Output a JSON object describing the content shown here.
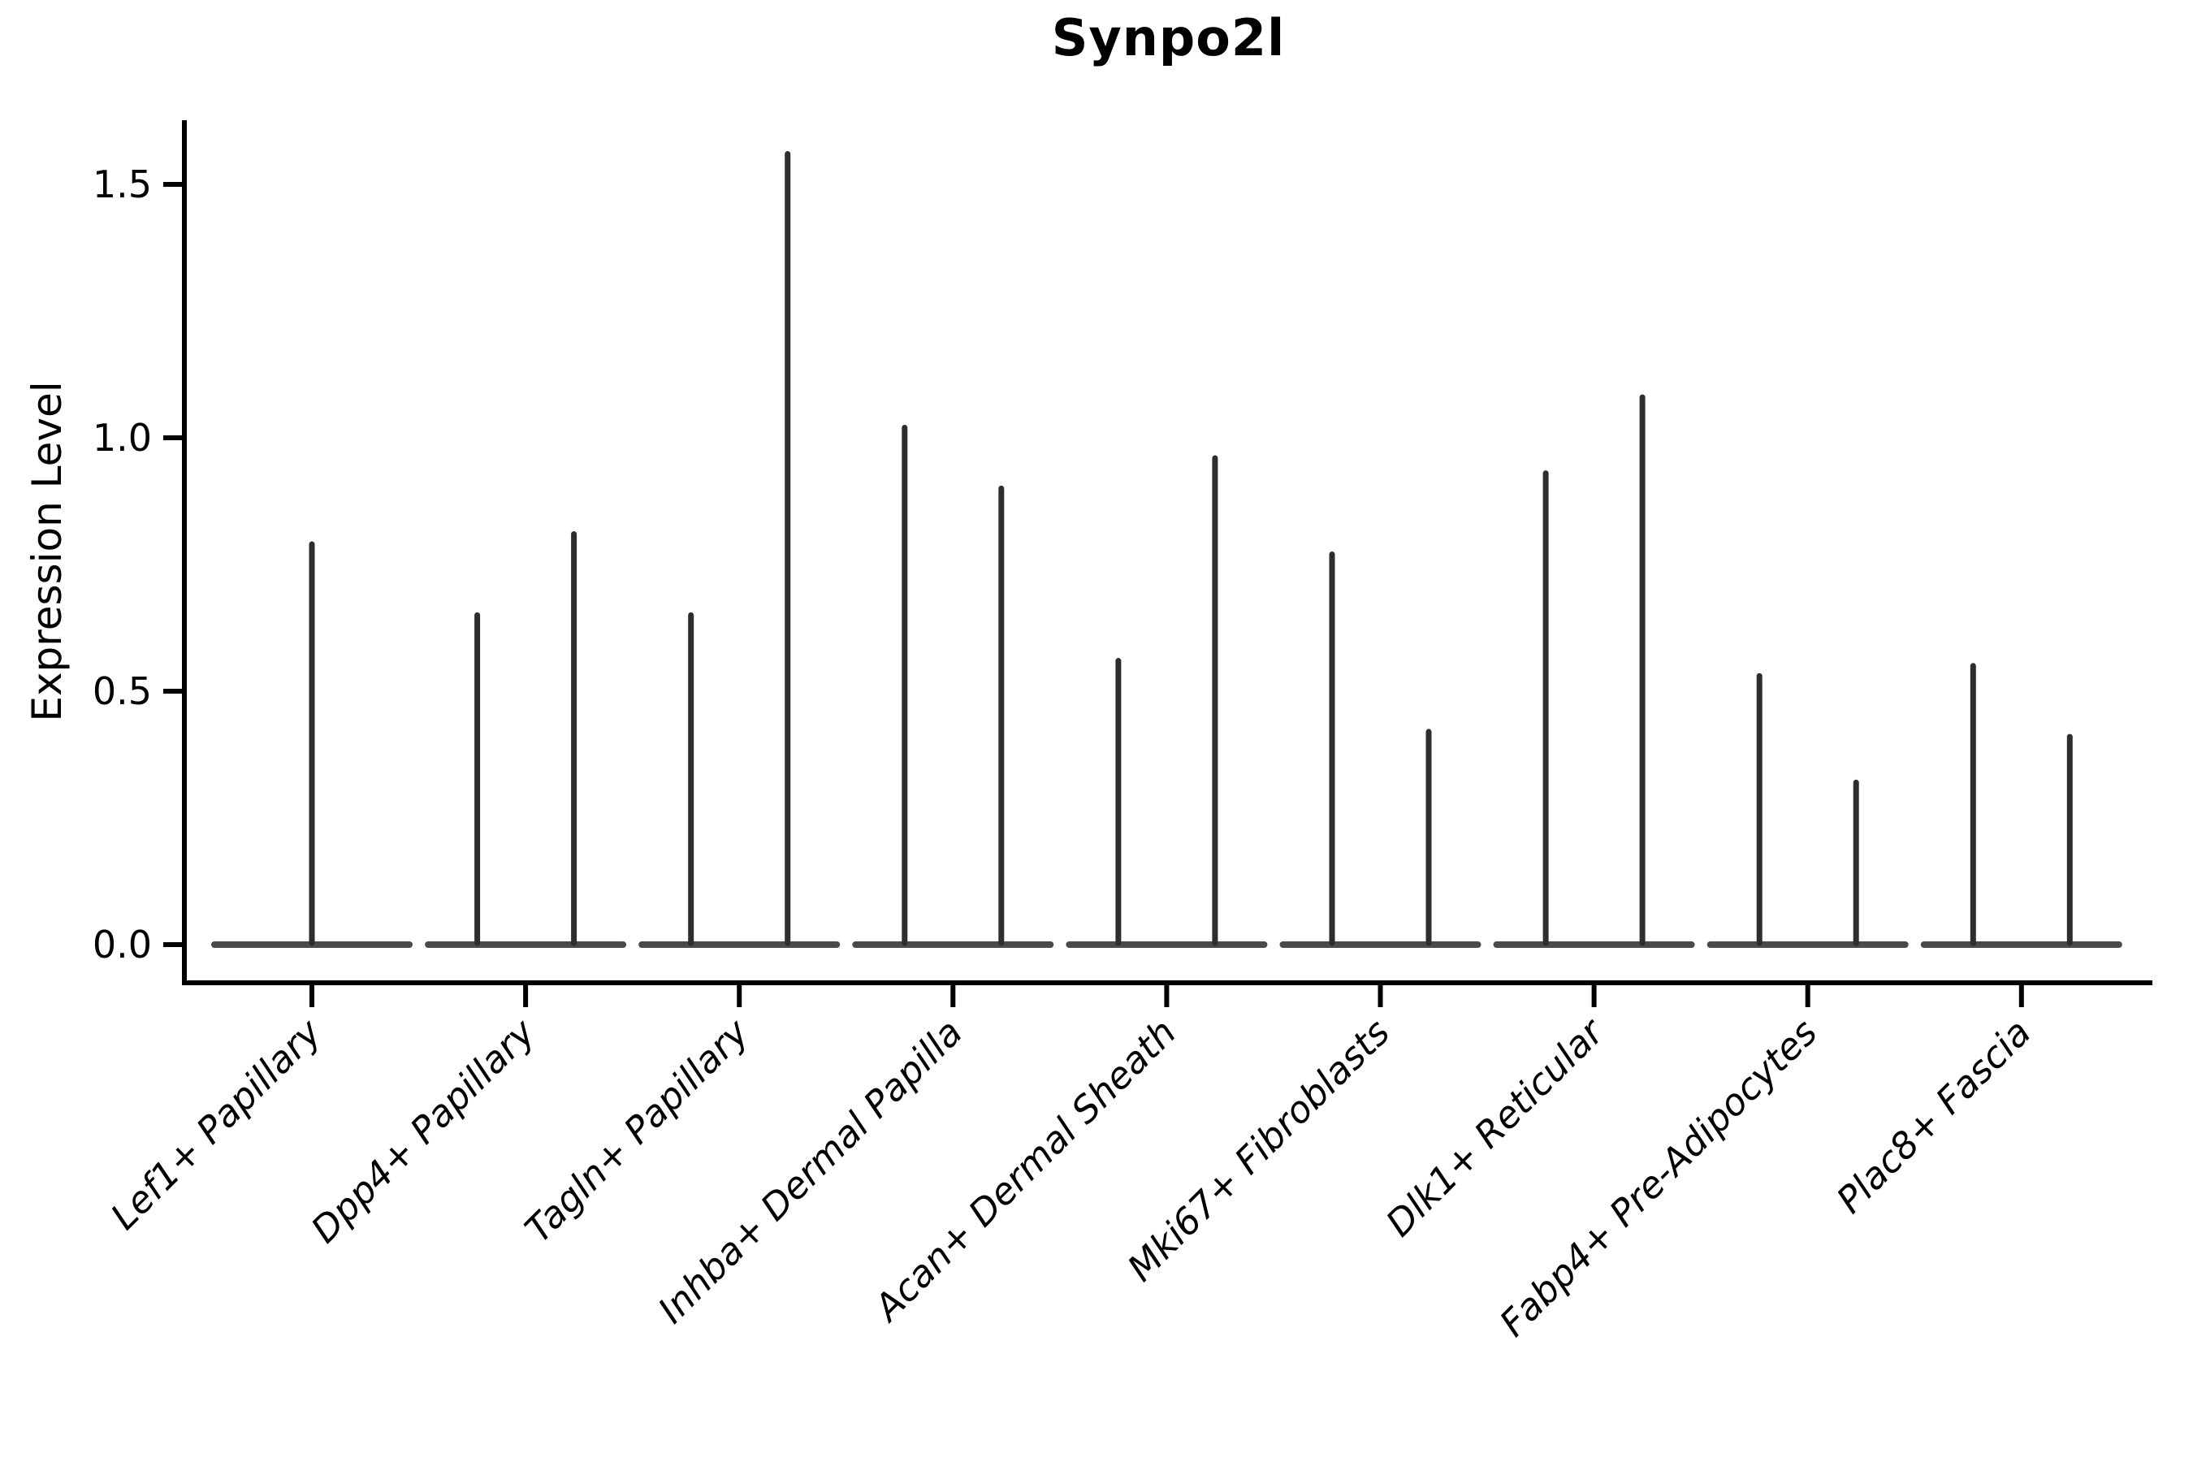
{
  "chart_data": {
    "type": "violin",
    "title": "Synpo2l",
    "ylabel": "Expression Level",
    "xlabel": "",
    "grid": false,
    "legend": "none",
    "ylim": [
      -0.08,
      1.63
    ],
    "yticks": [
      "0.0",
      "0.5",
      "1.0",
      "1.5"
    ],
    "ytick_values": [
      0.0,
      0.5,
      1.0,
      1.5
    ],
    "categories": [
      "Lef1+ Papillary",
      "Dpp4+ Papillary",
      "Tagln+ Papillary",
      "Inhba+ Dermal Papilla",
      "Acan+ Dermal Sheath",
      "Mki67+ Fibroblasts",
      "Dlk1+ Reticular",
      "Fabp4+ Pre-Adipocytes",
      "Plac8+ Fascia"
    ],
    "violins": [
      {
        "category": "Lef1+ Papillary",
        "baseline_value": 0.0,
        "spikes": [
          {
            "position": "center",
            "max": 0.79
          }
        ]
      },
      {
        "category": "Dpp4+ Papillary",
        "baseline_value": 0.0,
        "spikes": [
          {
            "position": "left",
            "max": 0.65
          },
          {
            "position": "right",
            "max": 0.81
          }
        ]
      },
      {
        "category": "Tagln+ Papillary",
        "baseline_value": 0.0,
        "spikes": [
          {
            "position": "left",
            "max": 0.65
          },
          {
            "position": "right",
            "max": 1.56
          }
        ]
      },
      {
        "category": "Inhba+ Dermal Papilla",
        "baseline_value": 0.0,
        "spikes": [
          {
            "position": "left",
            "max": 1.02
          },
          {
            "position": "right",
            "max": 0.9
          }
        ]
      },
      {
        "category": "Acan+ Dermal Sheath",
        "baseline_value": 0.0,
        "spikes": [
          {
            "position": "left",
            "max": 0.56
          },
          {
            "position": "right",
            "max": 0.96
          }
        ]
      },
      {
        "category": "Mki67+ Fibroblasts",
        "baseline_value": 0.0,
        "spikes": [
          {
            "position": "left",
            "max": 0.77
          },
          {
            "position": "right",
            "max": 0.42
          }
        ]
      },
      {
        "category": "Dlk1+ Reticular",
        "baseline_value": 0.0,
        "spikes": [
          {
            "position": "left",
            "max": 0.93
          },
          {
            "position": "right",
            "max": 1.08
          }
        ]
      },
      {
        "category": "Fabp4+ Pre-Adipocytes",
        "baseline_value": 0.0,
        "spikes": [
          {
            "position": "left",
            "max": 0.53
          },
          {
            "position": "right",
            "max": 0.32
          }
        ]
      },
      {
        "category": "Plac8+ Fascia",
        "baseline_value": 0.0,
        "spikes": [
          {
            "position": "left",
            "max": 0.55
          },
          {
            "position": "right",
            "max": 0.41
          }
        ]
      }
    ],
    "colors": {
      "spike": "#2e2e2e",
      "baseline": "#4a4a4a",
      "axis": "#000000",
      "text": "#000000"
    }
  }
}
